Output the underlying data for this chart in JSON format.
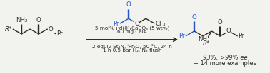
{
  "bg_color": "#f2f2ee",
  "line_color": "#2a2a2a",
  "blue_color": "#2255cc",
  "conditions_line1": "5 mol% Pd(0)/CaCO₃ (5 wt%)",
  "conditions_line2": "60 mg CalA",
  "conditions_line3": "2 equiv Et₃N, ⁱPr₂O, 50 °C, 24 h",
  "conditions_line4": "1 h 0.5 bar H₂, N₂ flush",
  "product_result": "93%, >99% ee",
  "product_examples": "+ 14 more examples",
  "font_size_cond": 5.2,
  "font_size_atom": 6.2,
  "font_size_result": 6.0
}
